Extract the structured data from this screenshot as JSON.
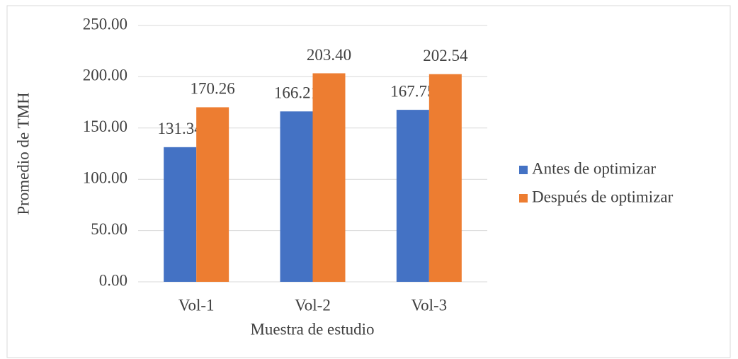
{
  "chart_data": {
    "type": "bar",
    "categories": [
      "Vol-1",
      "Vol-2",
      "Vol-3"
    ],
    "series": [
      {
        "name": "Antes de optimizar",
        "color": "#4472c4",
        "values": [
          131.34,
          166.21,
          167.75
        ],
        "value_labels": [
          "131.34",
          "166.21",
          "167.75"
        ]
      },
      {
        "name": "Después de optimizar",
        "color": "#ed7d31",
        "values": [
          170.26,
          203.4,
          202.54
        ],
        "value_labels": [
          "170.26",
          "203.40",
          "202.54"
        ]
      }
    ],
    "ylabel": "Promedio de TMH",
    "xlabel": "Muestra de estudio",
    "ylim": [
      0,
      250
    ],
    "yticks": [
      {
        "value": 0,
        "label": "0.00"
      },
      {
        "value": 50,
        "label": "50.00"
      },
      {
        "value": 100,
        "label": "100.00"
      },
      {
        "value": 150,
        "label": "150.00"
      },
      {
        "value": 200,
        "label": "200.00"
      },
      {
        "value": 250,
        "label": "250.00"
      }
    ],
    "grid": true,
    "legend": "right"
  }
}
